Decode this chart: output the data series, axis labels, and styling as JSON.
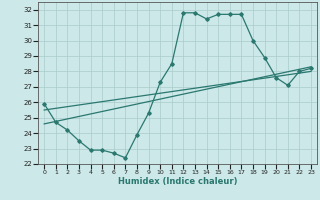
{
  "xlabel": "Humidex (Indice chaleur)",
  "background_color": "#cce8e8",
  "grid_color": "#aacccc",
  "line_color": "#2a7870",
  "xlim": [
    -0.5,
    23.5
  ],
  "ylim": [
    22,
    32.5
  ],
  "yticks": [
    22,
    23,
    24,
    25,
    26,
    27,
    28,
    29,
    30,
    31,
    32
  ],
  "xticks": [
    0,
    1,
    2,
    3,
    4,
    5,
    6,
    7,
    8,
    9,
    10,
    11,
    12,
    13,
    14,
    15,
    16,
    17,
    18,
    19,
    20,
    21,
    22,
    23
  ],
  "curve_x": [
    0,
    1,
    2,
    3,
    4,
    5,
    6,
    7,
    8,
    9,
    10,
    11,
    12,
    13,
    14,
    15,
    16,
    17,
    18,
    19,
    20,
    21,
    22,
    23
  ],
  "curve_y": [
    25.9,
    24.7,
    24.2,
    23.5,
    22.9,
    22.9,
    22.7,
    22.4,
    23.9,
    25.3,
    27.3,
    28.5,
    31.8,
    31.8,
    31.4,
    31.7,
    31.7,
    31.7,
    30.0,
    28.9,
    27.6,
    27.1,
    28.0,
    28.2
  ],
  "trend1_x": [
    0,
    23
  ],
  "trend1_y": [
    24.6,
    28.3
  ],
  "trend2_x": [
    0,
    23
  ],
  "trend2_y": [
    25.5,
    28.0
  ]
}
